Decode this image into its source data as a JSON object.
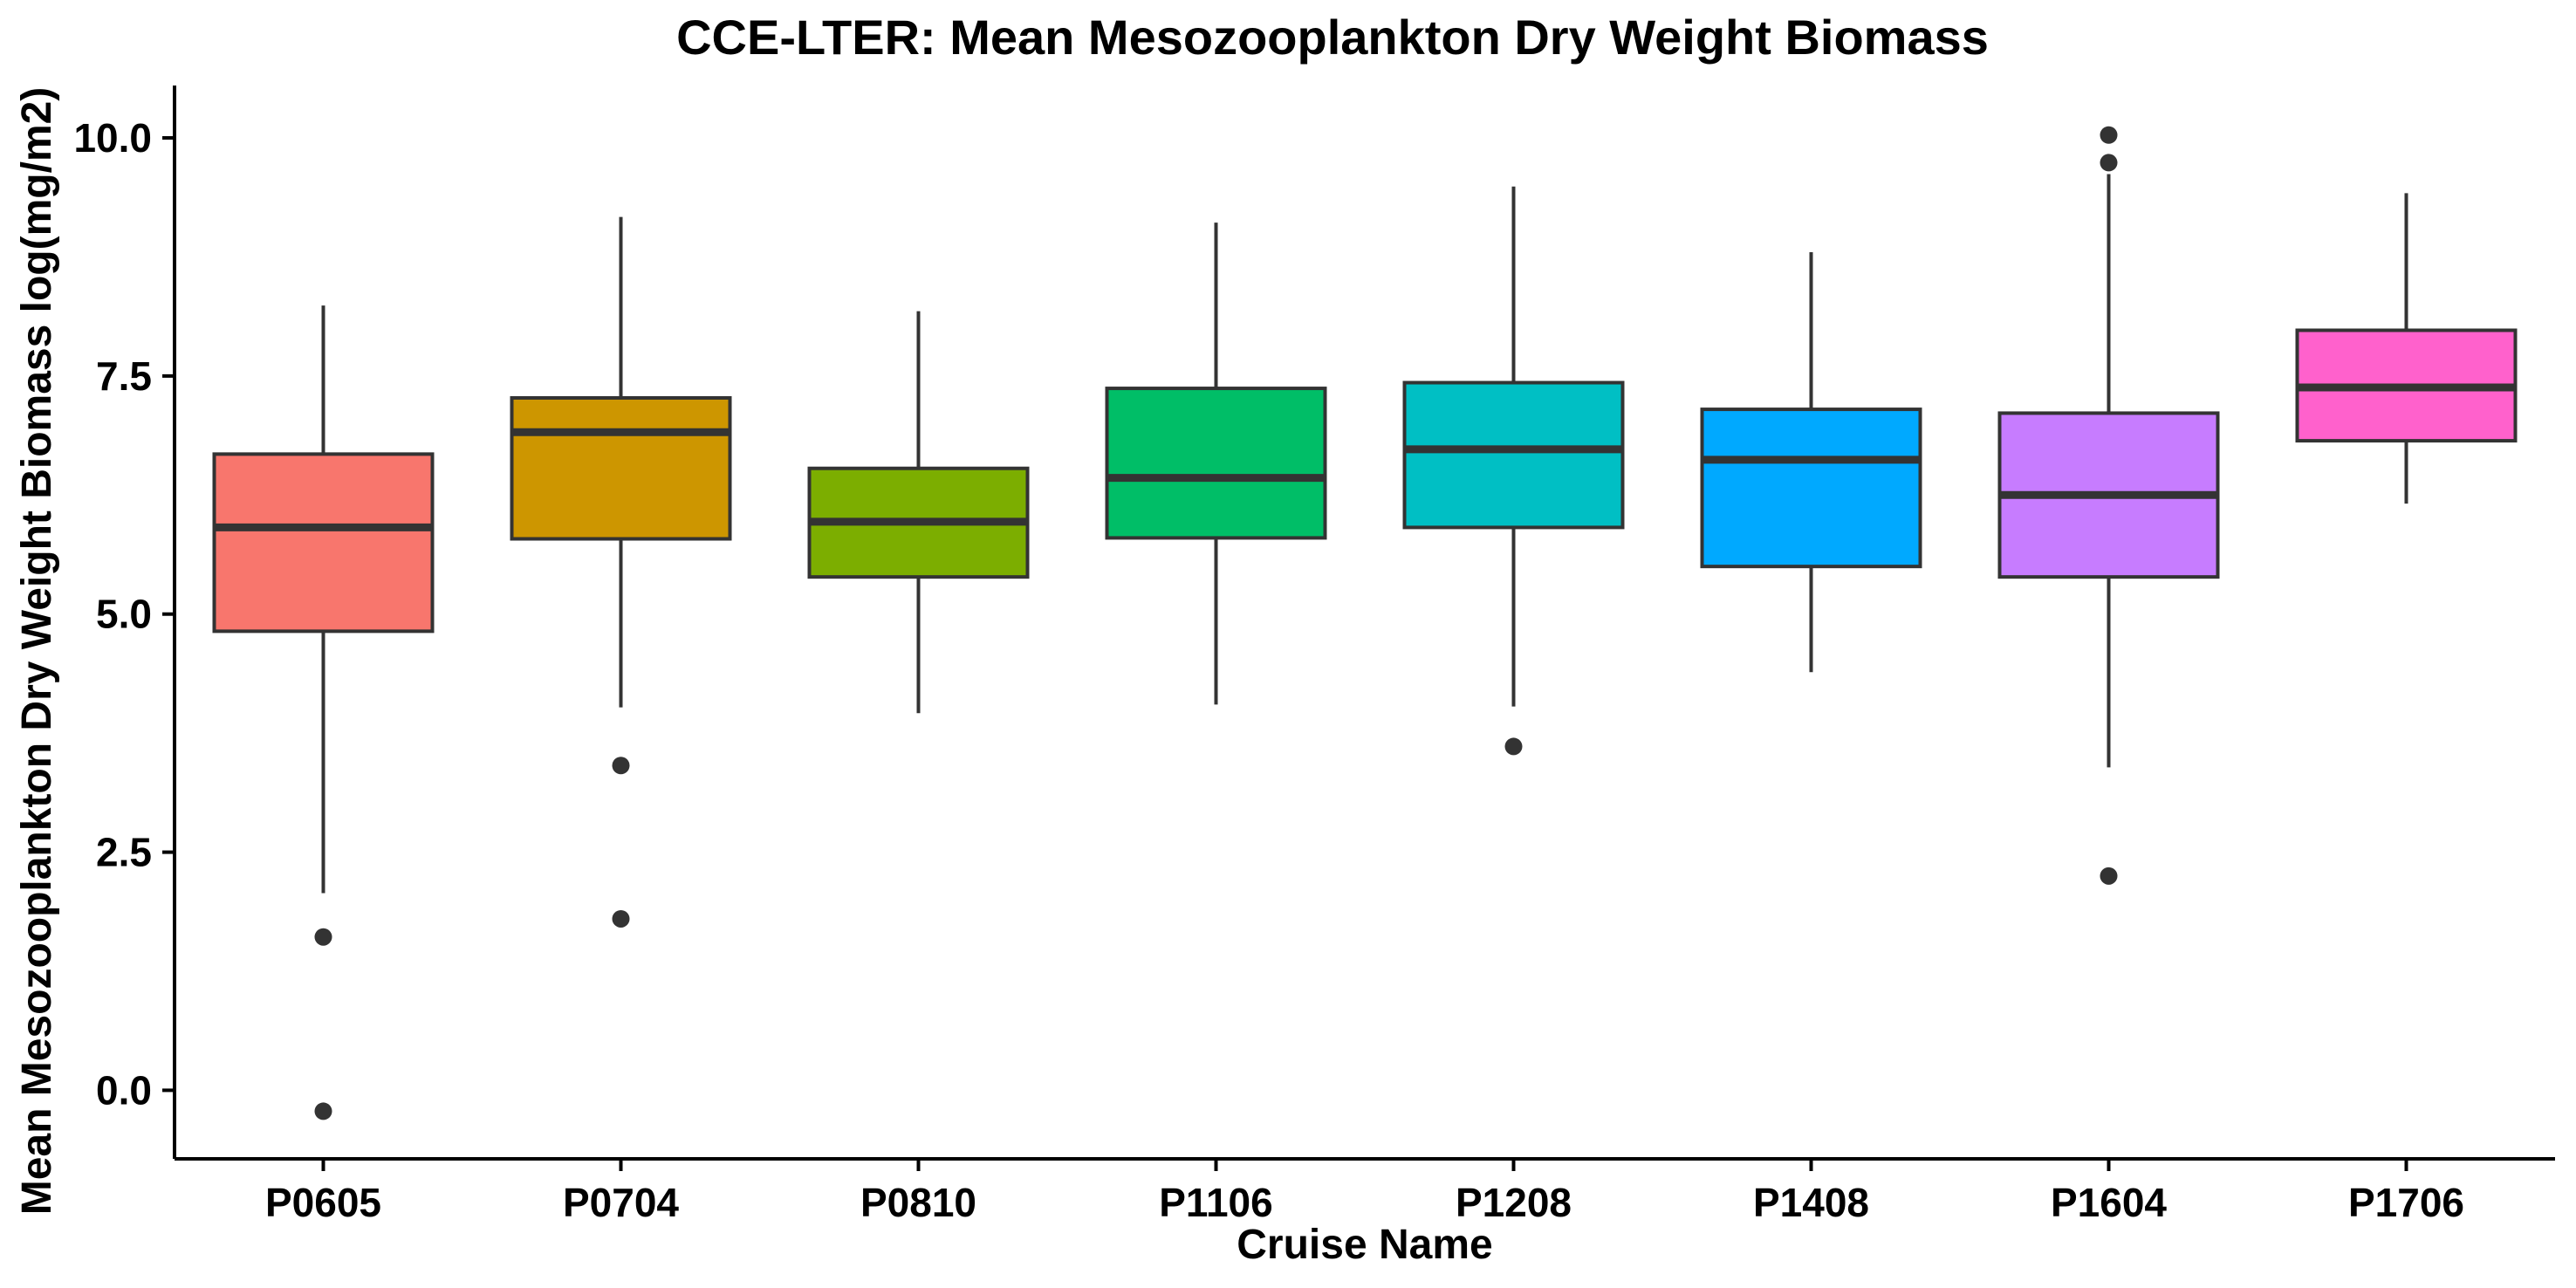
{
  "chart_data": {
    "type": "boxplot",
    "title": "CCE-LTER: Mean Mesozooplankton Dry Weight Biomass",
    "xlabel": "Cruise Name",
    "ylabel": "Mean Mesozooplankton Dry Weight Biomass log(mg/m2)",
    "ylim": [
      -0.72,
      10.55
    ],
    "yticks": [
      0.0,
      2.5,
      5.0,
      7.5,
      10.0
    ],
    "ytick_labels": [
      "0.0",
      "2.5",
      "5.0",
      "7.5",
      "10.0"
    ],
    "grid": false,
    "legend": "none",
    "categories": [
      "P0605",
      "P0704",
      "P0810",
      "P1106",
      "P1208",
      "P1408",
      "P1604",
      "P1706"
    ],
    "boxes": [
      {
        "name": "P0605",
        "whisker_low": 2.07,
        "q1": 4.82,
        "median": 5.91,
        "q3": 6.68,
        "whisker_high": 8.24,
        "outliers": [
          1.61,
          -0.22
        ],
        "color": "#F8766D"
      },
      {
        "name": "P0704",
        "whisker_low": 4.02,
        "q1": 5.79,
        "median": 6.91,
        "q3": 7.27,
        "whisker_high": 9.17,
        "outliers": [
          3.41,
          1.8
        ],
        "color": "#CD9600"
      },
      {
        "name": "P0810",
        "whisker_low": 3.96,
        "q1": 5.39,
        "median": 5.97,
        "q3": 6.53,
        "whisker_high": 8.18,
        "outliers": [],
        "color": "#7CAE00"
      },
      {
        "name": "P1106",
        "whisker_low": 4.05,
        "q1": 5.8,
        "median": 6.43,
        "q3": 7.37,
        "whisker_high": 9.11,
        "outliers": [],
        "color": "#00BE67"
      },
      {
        "name": "P1208",
        "whisker_low": 4.03,
        "q1": 5.91,
        "median": 6.73,
        "q3": 7.43,
        "whisker_high": 9.49,
        "outliers": [
          3.61
        ],
        "color": "#00BFC4"
      },
      {
        "name": "P1408",
        "whisker_low": 4.39,
        "q1": 5.5,
        "median": 6.62,
        "q3": 7.15,
        "whisker_high": 8.8,
        "outliers": [],
        "color": "#00A9FF"
      },
      {
        "name": "P1604",
        "whisker_low": 3.39,
        "q1": 5.39,
        "median": 6.25,
        "q3": 7.11,
        "whisker_high": 9.62,
        "outliers": [
          2.25,
          9.74,
          10.03
        ],
        "color": "#C77CFF"
      },
      {
        "name": "P1706",
        "whisker_low": 6.16,
        "q1": 6.82,
        "median": 7.38,
        "q3": 7.98,
        "whisker_high": 9.42,
        "outliers": [],
        "color": "#FF61CC"
      }
    ],
    "colors": {
      "box_outline": "#333333",
      "whisker": "#333333",
      "median": "#333333",
      "outlier": "#333333",
      "axis": "#000000"
    }
  }
}
